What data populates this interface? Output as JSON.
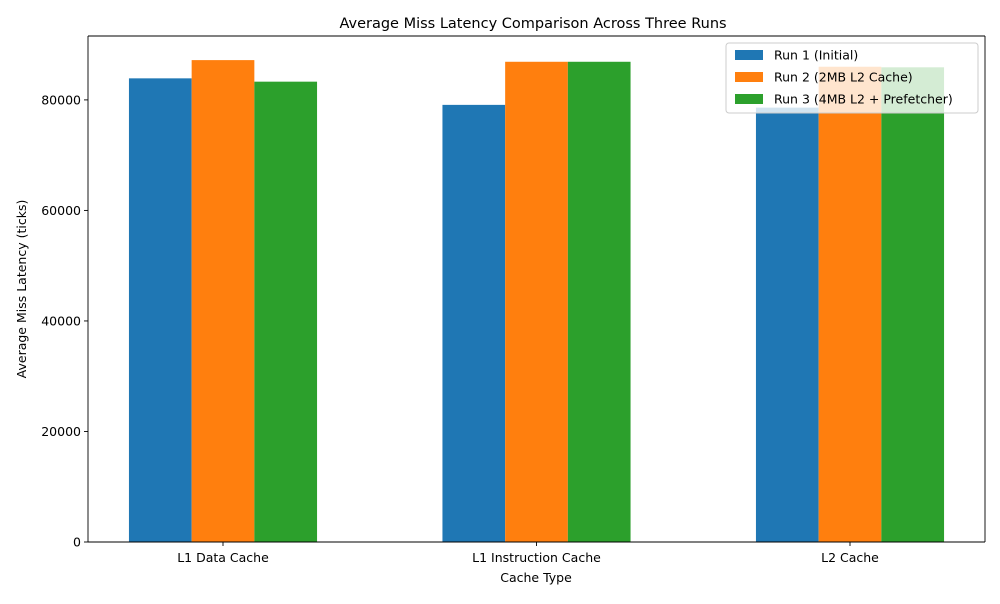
{
  "chart_data": {
    "type": "bar",
    "title": "Average Miss Latency Comparison Across Three Runs",
    "xlabel": "Cache Type",
    "ylabel": "Average Miss Latency (ticks)",
    "categories": [
      "L1 Data Cache",
      "L1 Instruction Cache",
      "L2 Cache"
    ],
    "series": [
      {
        "name": "Run 1 (Initial)",
        "color": "#1f77b4",
        "values": [
          83900,
          79100,
          78600
        ]
      },
      {
        "name": "Run 2 (2MB L2 Cache)",
        "color": "#ff7f0e",
        "values": [
          87200,
          86900,
          86000
        ]
      },
      {
        "name": "Run 3 (4MB L2 + Prefetcher)",
        "color": "#2ca02c",
        "values": [
          83300,
          86900,
          85900
        ]
      }
    ],
    "ylim": [
      0,
      91563
    ],
    "yticks": [
      0,
      20000,
      40000,
      60000,
      80000
    ],
    "legend": "top-right",
    "grid": false
  }
}
